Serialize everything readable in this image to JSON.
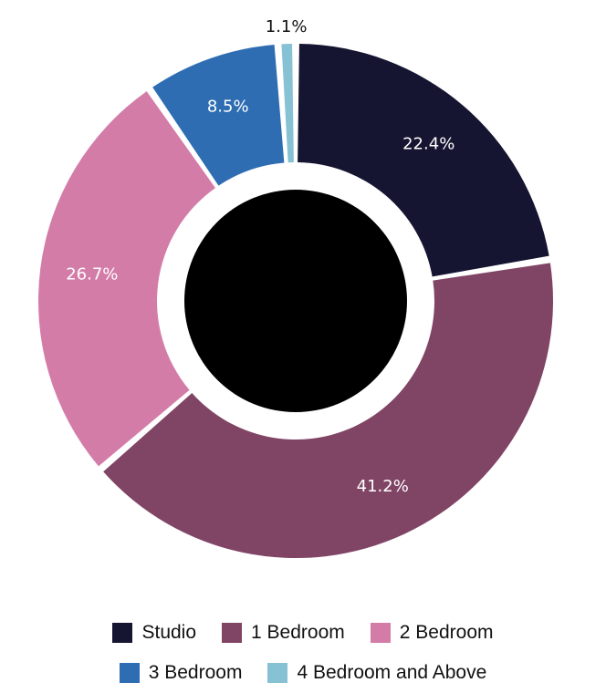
{
  "chart_data": {
    "type": "pie",
    "variant": "donut",
    "title": "",
    "categories": [
      "Studio",
      "1 Bedroom",
      "2 Bedroom",
      "3 Bedroom",
      "4 Bedroom and Above"
    ],
    "values": [
      22.4,
      41.2,
      26.7,
      8.5,
      1.1
    ],
    "value_labels": [
      "22.4%",
      "41.2%",
      "26.7%",
      "8.5%",
      "1.1%"
    ],
    "colors": [
      "#151532",
      "#804465",
      "#d47ca8",
      "#2f6db3",
      "#86c2d4"
    ],
    "center_color": "#000000",
    "legend_position": "bottom",
    "legend_rows": [
      [
        0,
        1,
        2
      ],
      [
        3,
        4
      ]
    ]
  }
}
